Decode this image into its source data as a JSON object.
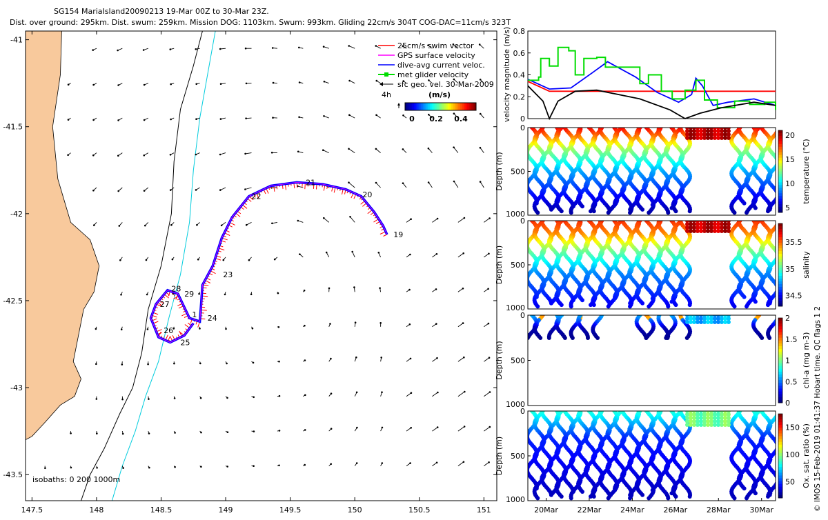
{
  "header": {
    "line1": "SG154 MariaIsland20090213 19-Mar 00Z to 30-Mar 23Z.",
    "line2": "Dist. over ground: 295km. Dist. swum: 259km. Mission DOG: 1103km. Swum: 993km. Gliding 22cm/s 304T COG-DAC=11cm/s 323T"
  },
  "copyright": "© IMOS 15-Feb-2019 01:41:37 Hobart time. QC flags 1  2",
  "colors": {
    "land": "#F8C99C",
    "swim": "#FF0000",
    "gps": "#FF00FF",
    "dac": "#0000FF",
    "met": "#00DD00",
    "sfc": "#000000",
    "isobath200": "#000000",
    "isobath1000": "#00CCDD"
  },
  "chart_data": [
    {
      "type": "scatter",
      "name": "map",
      "xlim": [
        147.45,
        151.1
      ],
      "ylim": [
        -43.65,
        -40.95
      ],
      "xticks": [
        147.5,
        148,
        148.5,
        149,
        149.5,
        150,
        150.5,
        151
      ],
      "xtick_labels": [
        "147.5",
        "148",
        "148.5",
        "149",
        "149.5",
        "150",
        "150.5",
        "151"
      ],
      "yticks": [
        -41,
        -41.5,
        -42,
        -42.5,
        -43,
        -43.5
      ],
      "ytick_labels": [
        "-41",
        "-41.5",
        "-42",
        "-42.5",
        "-43",
        "-43.5"
      ],
      "legend": [
        "25cm/s swim vector",
        "GPS surface velocity",
        "dive-avg current veloc.",
        "met glider velocity",
        "sfc geo. vel. 30-Mar-2009"
      ],
      "legend_position": "top-right",
      "colorbar": {
        "label": "(m/s)",
        "ticks": [
          "0",
          "0.2",
          "0.4"
        ],
        "range": [
          0,
          0.45
        ],
        "note": "4h"
      },
      "isobath_label": "isobaths: 0   200  1000m",
      "track": [
        [
          150.25,
          -42.12
        ],
        [
          150.22,
          -42.07
        ],
        [
          150.15,
          -41.99
        ],
        [
          150.05,
          -41.9
        ],
        [
          149.93,
          -41.86
        ],
        [
          149.75,
          -41.83
        ],
        [
          149.55,
          -41.82
        ],
        [
          149.35,
          -41.84
        ],
        [
          149.18,
          -41.9
        ],
        [
          149.05,
          -42.02
        ],
        [
          148.97,
          -42.14
        ],
        [
          148.9,
          -42.3
        ],
        [
          148.82,
          -42.41
        ],
        [
          148.81,
          -42.52
        ],
        [
          148.8,
          -42.62
        ],
        [
          148.72,
          -42.6
        ],
        [
          148.63,
          -42.46
        ],
        [
          148.55,
          -42.44
        ],
        [
          148.46,
          -42.52
        ],
        [
          148.42,
          -42.6
        ],
        [
          148.48,
          -42.71
        ],
        [
          148.57,
          -42.74
        ],
        [
          148.68,
          -42.7
        ],
        [
          148.75,
          -42.63
        ]
      ],
      "day_labels": [
        {
          "text": "19",
          "lon": 150.3,
          "lat": -42.12
        },
        {
          "text": "20",
          "lon": 150.06,
          "lat": -41.89
        },
        {
          "text": "21",
          "lon": 149.62,
          "lat": -41.82
        },
        {
          "text": "22",
          "lon": 149.2,
          "lat": -41.9
        },
        {
          "text": "23",
          "lon": 148.98,
          "lat": -42.35
        },
        {
          "text": "24",
          "lon": 148.86,
          "lat": -42.6
        },
        {
          "text": "25",
          "lon": 148.65,
          "lat": -42.74
        },
        {
          "text": "26",
          "lon": 148.52,
          "lat": -42.67
        },
        {
          "text": "27",
          "lon": 148.49,
          "lat": -42.52
        },
        {
          "text": "28",
          "lon": 148.58,
          "lat": -42.43
        },
        {
          "text": "29",
          "lon": 148.68,
          "lat": -42.46
        },
        {
          "text": "1",
          "lon": 148.74,
          "lat": -42.58
        }
      ],
      "isobath200": [
        [
          148.82,
          -40.95
        ],
        [
          148.75,
          -41.15
        ],
        [
          148.65,
          -41.4
        ],
        [
          148.6,
          -41.7
        ],
        [
          148.58,
          -42.0
        ],
        [
          148.5,
          -42.3
        ],
        [
          148.4,
          -42.55
        ],
        [
          148.35,
          -42.8
        ],
        [
          148.28,
          -43.0
        ],
        [
          148.18,
          -43.15
        ],
        [
          148.06,
          -43.35
        ],
        [
          147.95,
          -43.5
        ],
        [
          147.88,
          -43.65
        ]
      ],
      "isobath1000": [
        [
          148.92,
          -40.95
        ],
        [
          148.86,
          -41.2
        ],
        [
          148.8,
          -41.45
        ],
        [
          148.75,
          -41.75
        ],
        [
          148.72,
          -42.05
        ],
        [
          148.65,
          -42.35
        ],
        [
          148.56,
          -42.6
        ],
        [
          148.48,
          -42.85
        ],
        [
          148.38,
          -43.05
        ],
        [
          148.3,
          -43.25
        ],
        [
          148.2,
          -43.45
        ],
        [
          148.12,
          -43.65
        ]
      ],
      "coast": [
        [
          147.45,
          -40.95
        ],
        [
          147.73,
          -40.95
        ],
        [
          147.72,
          -41.2
        ],
        [
          147.66,
          -41.5
        ],
        [
          147.7,
          -41.8
        ],
        [
          147.8,
          -42.05
        ],
        [
          147.95,
          -42.15
        ],
        [
          148.02,
          -42.3
        ],
        [
          147.98,
          -42.45
        ],
        [
          147.9,
          -42.55
        ],
        [
          147.86,
          -42.7
        ],
        [
          147.82,
          -42.85
        ],
        [
          147.88,
          -42.95
        ],
        [
          147.83,
          -43.05
        ],
        [
          147.72,
          -43.1
        ],
        [
          147.6,
          -43.2
        ],
        [
          147.5,
          -43.28
        ],
        [
          147.45,
          -43.3
        ]
      ]
    },
    {
      "type": "line",
      "name": "velocity",
      "x_days": [
        0,
        11.5
      ],
      "xtick_labels": [
        "20Mar",
        "22Mar",
        "24Mar",
        "26Mar",
        "28Mar",
        "30Mar"
      ],
      "ylabel": "velocity magnitude (m/s)",
      "ylim": [
        0,
        0.8
      ],
      "yticks": [
        "0",
        "0.2",
        "0.4",
        "0.6",
        "0.8"
      ],
      "series": [
        {
          "name": "25cm/s swim",
          "color": "#FF0000",
          "points": [
            [
              0,
              0.34
            ],
            [
              1,
              0.25
            ],
            [
              11.5,
              0.25
            ]
          ]
        },
        {
          "name": "dive-avg current",
          "color": "#0000FF",
          "points": [
            [
              0,
              0.36
            ],
            [
              1,
              0.27
            ],
            [
              2,
              0.28
            ],
            [
              3,
              0.42
            ],
            [
              3.7,
              0.52
            ],
            [
              5,
              0.38
            ],
            [
              6,
              0.24
            ],
            [
              7,
              0.15
            ],
            [
              7.6,
              0.22
            ],
            [
              7.8,
              0.37
            ],
            [
              8.1,
              0.3
            ],
            [
              8.6,
              0.12
            ],
            [
              9.3,
              0.15
            ],
            [
              10.5,
              0.18
            ],
            [
              11.5,
              0.12
            ]
          ]
        },
        {
          "name": "met glider velocity",
          "color": "#00DD00",
          "points": [
            [
              0,
              0.35
            ],
            [
              0.5,
              0.38
            ],
            [
              0.6,
              0.55
            ],
            [
              1.0,
              0.48
            ],
            [
              1.4,
              0.65
            ],
            [
              1.9,
              0.62
            ],
            [
              2.2,
              0.4
            ],
            [
              2.6,
              0.55
            ],
            [
              3.2,
              0.56
            ],
            [
              3.6,
              0.47
            ],
            [
              4.4,
              0.47
            ],
            [
              5.2,
              0.32
            ],
            [
              5.6,
              0.4
            ],
            [
              6.2,
              0.25
            ],
            [
              6.7,
              0.18
            ],
            [
              7.3,
              0.26
            ],
            [
              7.8,
              0.35
            ],
            [
              8.2,
              0.17
            ],
            [
              8.8,
              0.1
            ],
            [
              9.6,
              0.16
            ],
            [
              10.3,
              0.13
            ],
            [
              11.0,
              0.15
            ],
            [
              11.5,
              0.08
            ]
          ]
        },
        {
          "name": "sfc geo. vel.",
          "color": "#000000",
          "points": [
            [
              0,
              0.3
            ],
            [
              0.7,
              0.16
            ],
            [
              1.0,
              0.0
            ],
            [
              1.4,
              0.16
            ],
            [
              2.2,
              0.25
            ],
            [
              3.2,
              0.26
            ],
            [
              5.2,
              0.18
            ],
            [
              6.6,
              0.08
            ],
            [
              7.3,
              0.0
            ],
            [
              8.0,
              0.05
            ],
            [
              9.0,
              0.1
            ],
            [
              10.5,
              0.15
            ],
            [
              11.5,
              0.12
            ]
          ]
        }
      ]
    },
    {
      "type": "heatmap",
      "name": "temperature",
      "ylabel": "Depth (m)",
      "yticks": [
        "0",
        "500",
        "1000"
      ],
      "colorbar_label": "temperature (°C)",
      "colorbar_ticks": [
        "20",
        "15",
        "10",
        "5"
      ],
      "range": [
        4,
        21
      ],
      "profile": [
        {
          "depth": 0,
          "value": 19
        },
        {
          "depth": 100,
          "value": 17
        },
        {
          "depth": 250,
          "value": 13
        },
        {
          "depth": 500,
          "value": 9
        },
        {
          "depth": 800,
          "value": 6
        },
        {
          "depth": 1000,
          "value": 4.5
        }
      ]
    },
    {
      "type": "heatmap",
      "name": "salinity",
      "ylabel": "Depth (m)",
      "yticks": [
        "0",
        "500",
        "1000"
      ],
      "colorbar_label": "salinity",
      "colorbar_ticks": [
        "35.5",
        "35",
        "34.5"
      ],
      "range": [
        34.3,
        35.85
      ],
      "profile": [
        {
          "depth": 0,
          "value": 35.6
        },
        {
          "depth": 150,
          "value": 35.45
        },
        {
          "depth": 350,
          "value": 35.05
        },
        {
          "depth": 600,
          "value": 34.7
        },
        {
          "depth": 1000,
          "value": 34.45
        }
      ]
    },
    {
      "type": "heatmap",
      "name": "chlorophyll",
      "ylabel": "Depth (m)",
      "yticks": [
        "0",
        "500",
        "1000"
      ],
      "colorbar_label": "chl-a (mg m-3)",
      "colorbar_ticks": [
        "2",
        "1.5",
        "1",
        "0.5",
        "0"
      ],
      "range": [
        0,
        2
      ],
      "profile": [
        {
          "depth": 0,
          "value": 0.6
        },
        {
          "depth": 60,
          "value": 0.45
        },
        {
          "depth": 150,
          "value": 0.1
        },
        {
          "depth": 300,
          "value": 0.0
        }
      ]
    },
    {
      "type": "heatmap",
      "name": "oxygen",
      "ylabel": "Depth (m)",
      "yticks": [
        "0",
        "500",
        "1000"
      ],
      "colorbar_label": "Ox. sat. ratio (%)",
      "colorbar_ticks": [
        "150",
        "100",
        "50"
      ],
      "range": [
        20,
        175
      ],
      "profile": [
        {
          "depth": 0,
          "value": 85
        },
        {
          "depth": 300,
          "value": 45
        },
        {
          "depth": 1000,
          "value": 28
        }
      ],
      "xtick_labels": [
        "20Mar",
        "22Mar",
        "24Mar",
        "26Mar",
        "28Mar",
        "30Mar"
      ]
    }
  ]
}
